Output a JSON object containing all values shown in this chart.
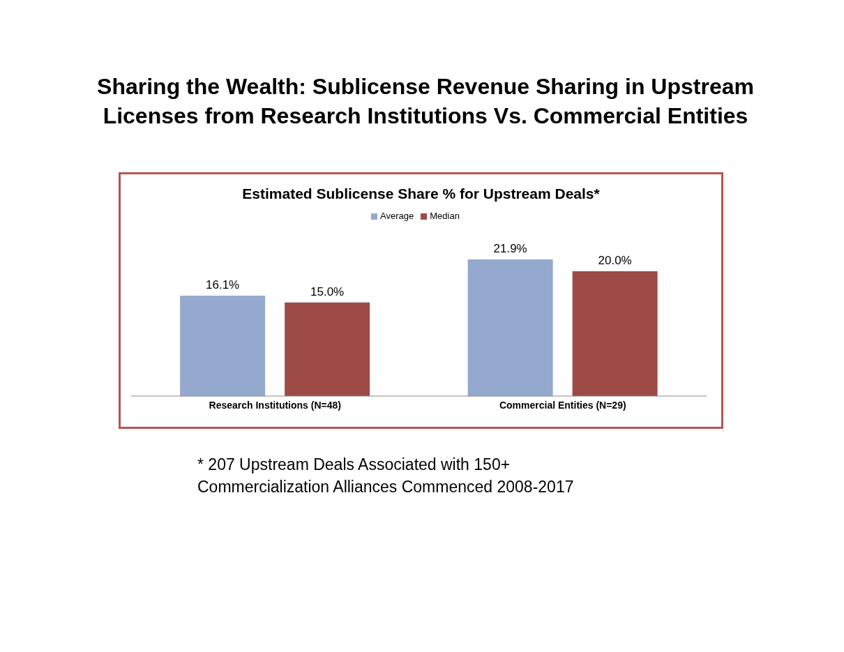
{
  "chart_data": {
    "type": "bar",
    "title": "Sharing the Wealth:  Sublicense Revenue Sharing in Upstream\nLicenses from Research Institutions Vs. Commercial Entities",
    "subtitle": "Estimated Sublicense Share % for Upstream Deals*",
    "categories": [
      "Research Institutions (N=48)",
      "Commercial Entities (N=29)"
    ],
    "series": [
      {
        "name": "Average",
        "color": "#95a9cf",
        "values": [
          16.1,
          21.9
        ],
        "value_labels": [
          "16.1%",
          "21.9%"
        ]
      },
      {
        "name": "Median",
        "color": "#9e4b47",
        "values": [
          15.0,
          20.0
        ],
        "value_labels": [
          "15.0%",
          "20.0%"
        ]
      }
    ],
    "legend": "top",
    "annotations": [
      "* 207 Upstream Deals Associated with 150+\nCommercialization Alliances Commenced 2008-2017"
    ]
  }
}
